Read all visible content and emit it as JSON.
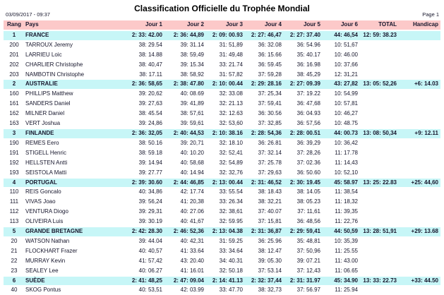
{
  "title": "Classification Officielle du Trophée Mondial",
  "meta": {
    "datetime": "03/09/2017 - 09:37",
    "page_label": "Page 1"
  },
  "colors": {
    "header_bg": "#fcc9c9",
    "team_row_bg": "#c7f6f7",
    "text": "#16162c"
  },
  "table": {
    "columns": [
      "Rang",
      "Pays",
      "Jour 1",
      "Jour 2",
      "Jour 3",
      "Jour 4",
      "Jour 5",
      "Jour 6",
      "TOTAL",
      "Handicap"
    ],
    "rows": [
      {
        "type": "team",
        "rang": "1",
        "name": "FRANCE",
        "j1": "2: 33: 42.00",
        "j2": "2: 36: 44,89",
        "j3": "2: 09: 00.93",
        "j4": "2: 27: 46,47",
        "j5": "2: 27: 37.40",
        "j6": "44: 46,54",
        "total": "12: 59: 38.23",
        "handicap": ""
      },
      {
        "type": "rider",
        "rang": "200",
        "name": "TARROUX Jeremy",
        "j1": "38: 29.54",
        "j2": "39: 31.14",
        "j3": "31: 51,89",
        "j4": "36: 32.08",
        "j5": "36: 54.96",
        "j6": "10: 51,67",
        "total": "",
        "handicap": ""
      },
      {
        "type": "rider",
        "rang": "201",
        "name": "LARRIEU Loic",
        "j1": "38: 14.88",
        "j2": "38: 59,49",
        "j3": "31: 49,48",
        "j4": "36: 15.66",
        "j5": "35: 40.17",
        "j6": "10: 46.00",
        "total": "",
        "handicap": ""
      },
      {
        "type": "rider",
        "rang": "202",
        "name": "CHARLIER Christophe",
        "j1": "38: 40,47",
        "j2": "39: 15.34",
        "j3": "33: 21.74",
        "j4": "36: 59.45",
        "j5": "36: 16.98",
        "j6": "10: 37,66",
        "total": "",
        "handicap": ""
      },
      {
        "type": "rider",
        "rang": "203",
        "name": "NAMBOTIN Christophe",
        "j1": "38: 17.11",
        "j2": "38: 58,92",
        "j3": "31: 57,82",
        "j4": "37: 59,28",
        "j5": "38: 45,29",
        "j6": "12: 31,21",
        "total": "",
        "handicap": ""
      },
      {
        "type": "team",
        "rang": "2",
        "name": "AUSTRALIE",
        "j1": "2: 36: 58,65",
        "j2": "2: 38: 47.80",
        "j3": "2: 10: 00.44",
        "j4": "2: 29: 28.16",
        "j5": "2: 27: 09.39",
        "j6": "43: 27,82",
        "total": "13: 05: 52,26",
        "handicap": "+6: 14.03"
      },
      {
        "type": "rider",
        "rang": "160",
        "name": "PHILLIPS Matthew",
        "j1": "39: 20,62",
        "j2": "40: 08.69",
        "j3": "32: 33.08",
        "j4": "37: 25,34",
        "j5": "37: 19.22",
        "j6": "10: 54,99",
        "total": "",
        "handicap": ""
      },
      {
        "type": "rider",
        "rang": "161",
        "name": "SANDERS Daniel",
        "j1": "39: 27,63",
        "j2": "39: 41,89",
        "j3": "32: 21.13",
        "j4": "37: 59,41",
        "j5": "36: 47,68",
        "j6": "10: 57,81",
        "total": "",
        "handicap": ""
      },
      {
        "type": "rider",
        "rang": "162",
        "name": "MILNER Daniel",
        "j1": "38: 45.54",
        "j2": "38: 57,61",
        "j3": "32: 12.63",
        "j4": "36: 30.56",
        "j5": "36: 04.93",
        "j6": "10: 46,27",
        "total": "",
        "handicap": ""
      },
      {
        "type": "rider",
        "rang": "163",
        "name": "VERT Joshua",
        "j1": "39: 24,86",
        "j2": "39: 59,61",
        "j3": "32: 53,60",
        "j4": "37: 32,85",
        "j5": "36: 57,56",
        "j6": "10: 48.75",
        "total": "",
        "handicap": ""
      },
      {
        "type": "team",
        "rang": "3",
        "name": "FINLANDE",
        "j1": "2: 36: 32,05",
        "j2": "2: 40: 44,53",
        "j3": "2: 10: 38.16",
        "j4": "2: 28: 54,36",
        "j5": "2: 28: 00.51",
        "j6": "44: 00.73",
        "total": "13: 08: 50,34",
        "handicap": "+9: 12.11"
      },
      {
        "type": "rider",
        "rang": "190",
        "name": "REMES Eero",
        "j1": "38: 50.16",
        "j2": "39: 20,71",
        "j3": "32: 18.10",
        "j4": "36: 26.81",
        "j5": "36: 39,29",
        "j6": "10: 36,42",
        "total": "",
        "handicap": ""
      },
      {
        "type": "rider",
        "rang": "191",
        "name": "STIGELL Henric",
        "j1": "38: 59.18",
        "j2": "40: 10.20",
        "j3": "32: 52,41",
        "j4": "37: 32.14",
        "j5": "37: 28,26",
        "j6": "11: 17.78",
        "total": "",
        "handicap": ""
      },
      {
        "type": "rider",
        "rang": "192",
        "name": "HELLSTEN Antti",
        "j1": "39: 14.94",
        "j2": "40: 58,68",
        "j3": "32: 54,89",
        "j4": "37: 25.78",
        "j5": "37: 02.36",
        "j6": "11: 14,43",
        "total": "",
        "handicap": ""
      },
      {
        "type": "rider",
        "rang": "193",
        "name": "SEISTOLA Matti",
        "j1": "39: 27.77",
        "j2": "40: 14.94",
        "j3": "32: 32,76",
        "j4": "37: 29,63",
        "j5": "36: 50.60",
        "j6": "10: 52,10",
        "total": "",
        "handicap": ""
      },
      {
        "type": "team",
        "rang": "4",
        "name": "PORTUGAL",
        "j1": "2: 39: 30.60",
        "j2": "2: 44: 46,85",
        "j3": "2: 13: 00.44",
        "j4": "2: 31: 46,52",
        "j5": "2: 30: 19.45",
        "j6": "45: 58.97",
        "total": "13: 25: 22.83",
        "handicap": "+25: 44,60"
      },
      {
        "type": "rider",
        "rang": "110",
        "name": "REIS Goncalo",
        "j1": "40: 34,86",
        "j2": "42: 17.74",
        "j3": "33: 55.54",
        "j4": "38: 18.43",
        "j5": "38: 14.05",
        "j6": "11: 38,54",
        "total": "",
        "handicap": ""
      },
      {
        "type": "rider",
        "rang": "111",
        "name": "VIVAS Joao",
        "j1": "39: 56,24",
        "j2": "41: 20,38",
        "j3": "33: 26.34",
        "j4": "38: 32,21",
        "j5": "38: 05.23",
        "j6": "11: 18,32",
        "total": "",
        "handicap": ""
      },
      {
        "type": "rider",
        "rang": "112",
        "name": "VENTURA Diogo",
        "j1": "39: 29,31",
        "j2": "40: 27.06",
        "j3": "32: 38,61",
        "j4": "37: 40.07",
        "j5": "37: 11,61",
        "j6": "11: 39,35",
        "total": "",
        "handicap": ""
      },
      {
        "type": "rider",
        "rang": "113",
        "name": "OLIVEIRA Luis",
        "j1": "39: 30.19",
        "j2": "40: 41,67",
        "j3": "32: 59.95",
        "j4": "37: 15,81",
        "j5": "36: 48,56",
        "j6": "11: 22,76",
        "total": "",
        "handicap": ""
      },
      {
        "type": "team",
        "rang": "5",
        "name": "GRANDE BRETAGNE",
        "j1": "2: 42: 28.30",
        "j2": "2: 46: 52,36",
        "j3": "2: 13: 04.38",
        "j4": "2: 31: 36,87",
        "j5": "2: 29: 59,41",
        "j6": "44: 50,59",
        "total": "13: 28: 51,91",
        "handicap": "+29: 13.68"
      },
      {
        "type": "rider",
        "rang": "20",
        "name": "WATSON Nathan",
        "j1": "39: 44.04",
        "j2": "40: 42,31",
        "j3": "31: 59.25",
        "j4": "36: 25.96",
        "j5": "35: 48,81",
        "j6": "10: 35,39",
        "total": "",
        "handicap": ""
      },
      {
        "type": "rider",
        "rang": "21",
        "name": "FLOCKHART Frazer",
        "j1": "40: 40,57",
        "j2": "41: 33.64",
        "j3": "33: 34.64",
        "j4": "38: 12.47",
        "j5": "37: 50,96",
        "j6": "11: 25.55",
        "total": "",
        "handicap": ""
      },
      {
        "type": "rider",
        "rang": "22",
        "name": "MURRAY Kevin",
        "j1": "41: 57,42",
        "j2": "43: 20.40",
        "j3": "34: 40.31",
        "j4": "39: 05.30",
        "j5": "39: 07.21",
        "j6": "11: 43.00",
        "total": "",
        "handicap": ""
      },
      {
        "type": "rider",
        "rang": "23",
        "name": "SEALEY Lee",
        "j1": "40: 06.27",
        "j2": "41: 16.01",
        "j3": "32: 50.18",
        "j4": "37: 53.14",
        "j5": "37: 12,43",
        "j6": "11: 06.65",
        "total": "",
        "handicap": ""
      },
      {
        "type": "team",
        "rang": "6",
        "name": "SUÈDE",
        "j1": "2: 41: 48,25",
        "j2": "2: 47: 09.04",
        "j3": "2: 14: 41.13",
        "j4": "2: 32: 37,44",
        "j5": "2: 31: 31.97",
        "j6": "45: 34.90",
        "total": "13: 33: 22.73",
        "handicap": "+33: 44.50"
      },
      {
        "type": "rider",
        "rang": "40",
        "name": "SKOG Pontus",
        "j1": "40: 53,51",
        "j2": "42: 03.99",
        "j3": "33: 47.70",
        "j4": "38: 32,73",
        "j5": "37: 56.97",
        "j6": "11: 25.94",
        "total": "",
        "handicap": ""
      }
    ]
  }
}
